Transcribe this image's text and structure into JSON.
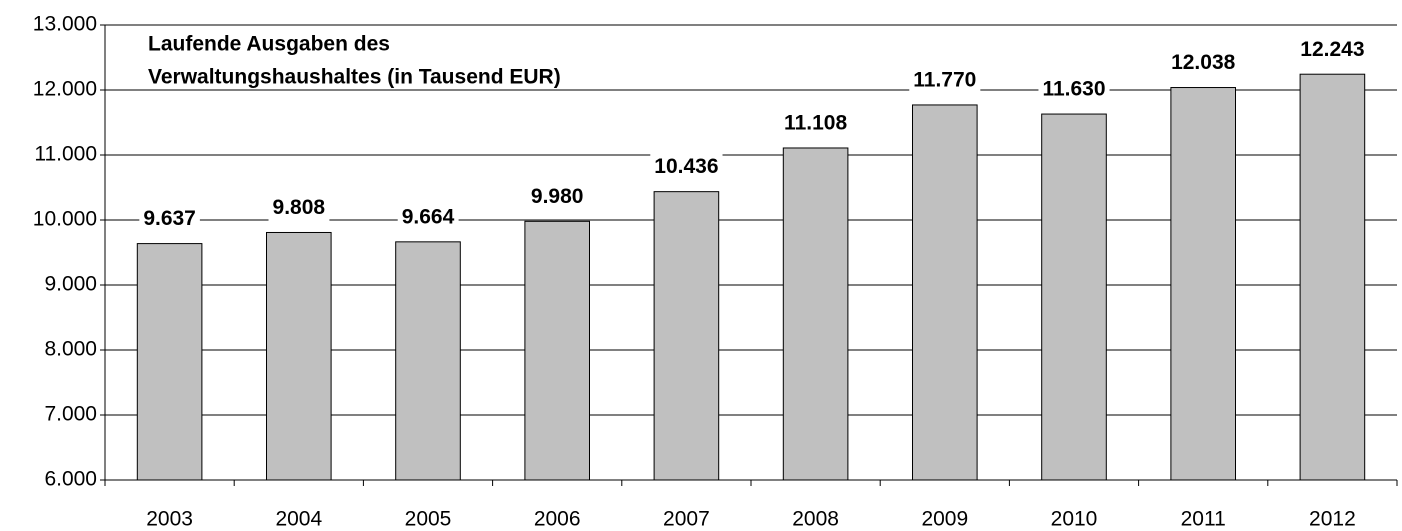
{
  "chart_data": {
    "type": "bar",
    "title": [
      "Laufende Ausgaben des",
      "Verwaltungshaushaltes (in Tausend EUR)"
    ],
    "categories": [
      "2003",
      "2004",
      "2005",
      "2006",
      "2007",
      "2008",
      "2009",
      "2010",
      "2011",
      "2012"
    ],
    "values": [
      9637,
      9808,
      9664,
      9980,
      10436,
      11108,
      11770,
      11630,
      12038,
      12243
    ],
    "value_labels": [
      "9.637",
      "9.808",
      "9.664",
      "9.980",
      "10.436",
      "11.108",
      "11.770",
      "11.630",
      "12.038",
      "12.243"
    ],
    "color": "#c0c0c0",
    "ylim": [
      6000,
      13000
    ],
    "yticks": [
      {
        "value": 6000,
        "label": "6.000"
      },
      {
        "value": 7000,
        "label": "7.000"
      },
      {
        "value": 8000,
        "label": "8.000"
      },
      {
        "value": 9000,
        "label": "9.000"
      },
      {
        "value": 10000,
        "label": "10.000"
      },
      {
        "value": 11000,
        "label": "11.000"
      },
      {
        "value": 12000,
        "label": "12.000"
      },
      {
        "value": 13000,
        "label": "13.000"
      }
    ],
    "grid": true
  }
}
